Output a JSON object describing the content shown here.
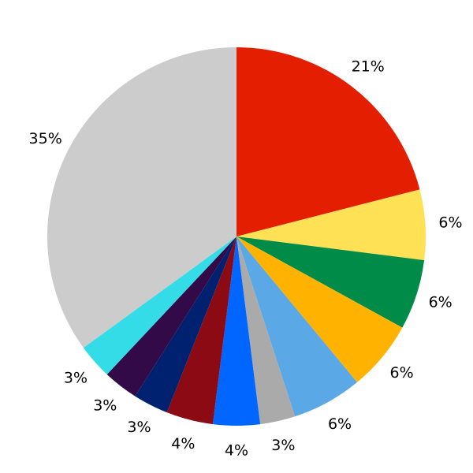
{
  "chart_data": {
    "type": "pie",
    "values": [
      21,
      6,
      6,
      6,
      6,
      3,
      4,
      4,
      3,
      3,
      3,
      35
    ],
    "value_labels": [
      "21%",
      "6%",
      "6%",
      "6%",
      "6%",
      "3%",
      "4%",
      "4%",
      "3%",
      "3%",
      "3%",
      "35%"
    ],
    "colors": [
      "#e41e00",
      "#ffe156",
      "#008b48",
      "#ffb300",
      "#5aa9e6",
      "#aaaaaa",
      "#0066ff",
      "#8b0a14",
      "#002070",
      "#330a48",
      "#33dce6",
      "#cccccc"
    ]
  }
}
